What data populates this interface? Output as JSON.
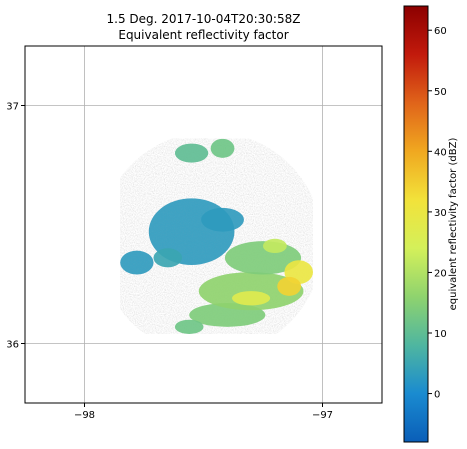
{
  "chart_data": {
    "type": "heatmap",
    "title": "1.5 Deg. 2017-10-04T20:30:58Z",
    "subtitle": "Equivalent reflectivity factor",
    "x_ticks": [
      {
        "value": -98,
        "label": "−98"
      },
      {
        "value": -97,
        "label": "−97"
      }
    ],
    "y_ticks": [
      {
        "value": 37,
        "label": "37"
      },
      {
        "value": 36,
        "label": "36"
      }
    ],
    "xlim": [
      -98.25,
      -96.75
    ],
    "ylim": [
      35.75,
      37.25
    ],
    "grid": true,
    "colorbar": {
      "label": "equivalent reflectivity factor (dBZ)",
      "range": [
        -8,
        64
      ],
      "ticks": [
        {
          "value": 0,
          "label": "0"
        },
        {
          "value": 10,
          "label": "10"
        },
        {
          "value": 20,
          "label": "20"
        },
        {
          "value": 30,
          "label": "30"
        },
        {
          "value": 40,
          "label": "40"
        },
        {
          "value": 50,
          "label": "50"
        },
        {
          "value": 60,
          "label": "60"
        }
      ],
      "colors": [
        "#0a5eb8",
        "#1a8bd0",
        "#4fb6a0",
        "#8fd36e",
        "#d4f05a",
        "#f2e23a",
        "#f0a820",
        "#e0641a",
        "#c21a0c",
        "#8c0000"
      ]
    },
    "echo_regions": [
      {
        "lon": -97.55,
        "lat": 36.47,
        "rlon": 0.18,
        "rlat": 0.14,
        "dbz": 3
      },
      {
        "lon": -97.42,
        "lat": 36.52,
        "rlon": 0.09,
        "rlat": 0.05,
        "dbz": 3
      },
      {
        "lon": -97.78,
        "lat": 36.34,
        "rlon": 0.07,
        "rlat": 0.05,
        "dbz": 3
      },
      {
        "lon": -97.65,
        "lat": 36.36,
        "rlon": 0.06,
        "rlat": 0.04,
        "dbz": 5
      },
      {
        "lon": -97.55,
        "lat": 36.8,
        "rlon": 0.07,
        "rlat": 0.04,
        "dbz": 10
      },
      {
        "lon": -97.42,
        "lat": 36.82,
        "rlon": 0.05,
        "rlat": 0.04,
        "dbz": 12
      },
      {
        "lon": -97.4,
        "lat": 36.12,
        "rlon": 0.16,
        "rlat": 0.05,
        "dbz": 14
      },
      {
        "lon": -97.3,
        "lat": 36.22,
        "rlon": 0.22,
        "rlat": 0.08,
        "dbz": 16
      },
      {
        "lon": -97.25,
        "lat": 36.36,
        "rlon": 0.16,
        "rlat": 0.07,
        "dbz": 14
      },
      {
        "lon": -97.1,
        "lat": 36.3,
        "rlon": 0.06,
        "rlat": 0.05,
        "dbz": 30
      },
      {
        "lon": -97.14,
        "lat": 36.24,
        "rlon": 0.05,
        "rlat": 0.04,
        "dbz": 34
      },
      {
        "lon": -97.3,
        "lat": 36.19,
        "rlon": 0.08,
        "rlat": 0.03,
        "dbz": 27
      },
      {
        "lon": -97.2,
        "lat": 36.41,
        "rlon": 0.05,
        "rlat": 0.03,
        "dbz": 22
      },
      {
        "lon": -97.56,
        "lat": 36.07,
        "rlon": 0.06,
        "rlat": 0.03,
        "dbz": 12
      }
    ]
  }
}
